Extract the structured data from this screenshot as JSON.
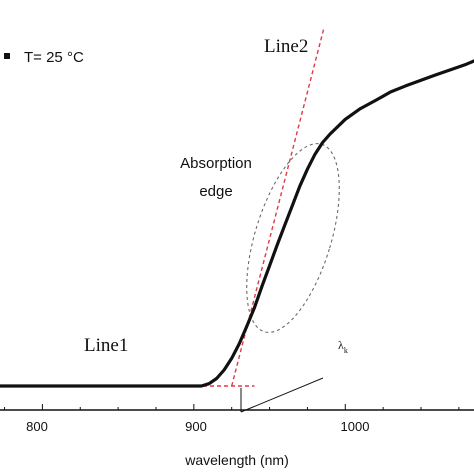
{
  "chart_data": {
    "type": "line",
    "xlabel": "wavelength (nm)",
    "ylabel": "",
    "xlim": [
      772,
      1085
    ],
    "ylim": [
      0,
      1
    ],
    "x_ticks": [
      "800",
      "900",
      "1000"
    ],
    "x_tick_values": [
      800,
      900,
      1000
    ],
    "grid": false,
    "legend": "T= 25 °C",
    "series": [
      {
        "x": [
          772,
          800,
          850,
          880,
          905,
          910,
          915,
          920,
          925,
          930,
          935,
          940,
          945,
          950,
          955,
          960,
          965,
          970,
          975,
          980,
          985,
          990,
          1000,
          1010,
          1020,
          1030,
          1040,
          1050,
          1060,
          1070,
          1080,
          1085
        ],
        "y": [
          0.0,
          0.0,
          0.0,
          0.0,
          0.0,
          0.007,
          0.023,
          0.049,
          0.085,
          0.13,
          0.183,
          0.24,
          0.306,
          0.369,
          0.432,
          0.493,
          0.553,
          0.613,
          0.665,
          0.711,
          0.747,
          0.773,
          0.818,
          0.851,
          0.876,
          0.902,
          0.921,
          0.938,
          0.955,
          0.971,
          0.987,
          0.997
        ]
      }
    ],
    "reference_lines": [
      {
        "label": "Line1",
        "x": [
          772,
          940
        ],
        "y": [
          0.0,
          0.0
        ]
      },
      {
        "label": "Line2",
        "x": [
          925,
          986
        ],
        "y": [
          0.0,
          1.1
        ]
      }
    ],
    "annotations": {
      "edge_label_line1": "Absorption",
      "edge_label_line2": "edge",
      "lambda_label": "λ",
      "lambda_sub": "k"
    },
    "colors": {
      "data": "#111111",
      "fit_lines": "#e0394a",
      "ellipse": "#6a6a6a",
      "axes": "#111111"
    }
  }
}
